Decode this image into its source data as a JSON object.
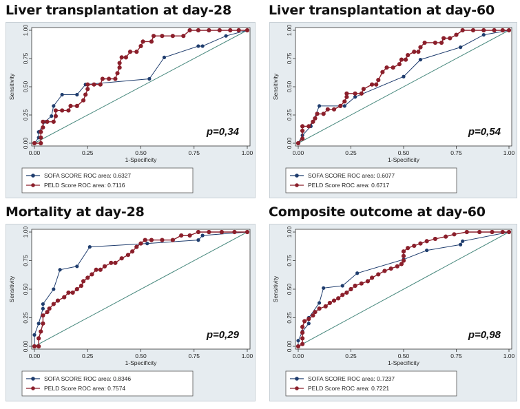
{
  "colors": {
    "sofa": "#1f3d6e",
    "peld": "#8b1f2b",
    "reference": "#4a8a7f",
    "panel_bg": "#e6ecf0",
    "plot_bg": "#ffffff"
  },
  "chart_data": [
    {
      "type": "line",
      "title": "Liver transplantation at day-28",
      "xlabel": "1-Specificity",
      "ylabel": "Sensitivity",
      "xlim": [
        0,
        1
      ],
      "ylim": [
        0,
        1
      ],
      "ticks": [
        "0.00",
        "0.25",
        "0.50",
        "0.75",
        "1.00"
      ],
      "p_value": "p=0,34",
      "legend": [
        "SOFA SCORE ROC area: 0.6327",
        "PELD Score ROC area: 0.7116"
      ],
      "series": [
        {
          "name": "SOFA SCORE",
          "points": [
            [
              0,
              0
            ],
            [
              0.02,
              0.05
            ],
            [
              0.02,
              0.1
            ],
            [
              0.05,
              0.19
            ],
            [
              0.08,
              0.24
            ],
            [
              0.09,
              0.33
            ],
            [
              0.13,
              0.43
            ],
            [
              0.2,
              0.43
            ],
            [
              0.24,
              0.52
            ],
            [
              0.54,
              0.57
            ],
            [
              0.61,
              0.76
            ],
            [
              0.77,
              0.86
            ],
            [
              0.79,
              0.86
            ],
            [
              0.9,
              0.95
            ],
            [
              1,
              1
            ]
          ]
        },
        {
          "name": "PELD Score",
          "points": [
            [
              0,
              0
            ],
            [
              0.03,
              0
            ],
            [
              0.03,
              0.05
            ],
            [
              0.03,
              0.1
            ],
            [
              0.04,
              0.14
            ],
            [
              0.04,
              0.19
            ],
            [
              0.06,
              0.19
            ],
            [
              0.09,
              0.19
            ],
            [
              0.1,
              0.24
            ],
            [
              0.1,
              0.29
            ],
            [
              0.13,
              0.29
            ],
            [
              0.16,
              0.29
            ],
            [
              0.17,
              0.33
            ],
            [
              0.2,
              0.33
            ],
            [
              0.23,
              0.38
            ],
            [
              0.24,
              0.43
            ],
            [
              0.25,
              0.48
            ],
            [
              0.25,
              0.52
            ],
            [
              0.28,
              0.52
            ],
            [
              0.31,
              0.52
            ],
            [
              0.32,
              0.57
            ],
            [
              0.35,
              0.57
            ],
            [
              0.38,
              0.57
            ],
            [
              0.39,
              0.62
            ],
            [
              0.4,
              0.67
            ],
            [
              0.4,
              0.71
            ],
            [
              0.41,
              0.76
            ],
            [
              0.43,
              0.76
            ],
            [
              0.45,
              0.81
            ],
            [
              0.48,
              0.81
            ],
            [
              0.5,
              0.86
            ],
            [
              0.51,
              0.9
            ],
            [
              0.55,
              0.9
            ],
            [
              0.56,
              0.95
            ],
            [
              0.6,
              0.95
            ],
            [
              0.65,
              0.95
            ],
            [
              0.7,
              0.95
            ],
            [
              0.73,
              1
            ],
            [
              0.77,
              1
            ],
            [
              0.82,
              1
            ],
            [
              0.87,
              1
            ],
            [
              0.92,
              1
            ],
            [
              0.96,
              1
            ],
            [
              1,
              1
            ]
          ]
        }
      ]
    },
    {
      "type": "line",
      "title": "Liver transplantation at day-60",
      "xlabel": "1-Specificity",
      "ylabel": "Sensitivity",
      "xlim": [
        0,
        1
      ],
      "ylim": [
        0,
        1
      ],
      "ticks": [
        "0.00",
        "0.25",
        "0.50",
        "0.75",
        "1.00"
      ],
      "p_value": "p=0,54",
      "legend": [
        "SOFA SCORE ROC area: 0.6077",
        "PELD Score ROC area: 0.6717"
      ],
      "series": [
        {
          "name": "SOFA SCORE",
          "points": [
            [
              0,
              0
            ],
            [
              0.02,
              0.07
            ],
            [
              0.06,
              0.15
            ],
            [
              0.1,
              0.33
            ],
            [
              0.22,
              0.33
            ],
            [
              0.27,
              0.41
            ],
            [
              0.5,
              0.59
            ],
            [
              0.58,
              0.74
            ],
            [
              0.77,
              0.85
            ],
            [
              0.88,
              0.96
            ],
            [
              1,
              1
            ]
          ]
        },
        {
          "name": "PELD Score",
          "points": [
            [
              0,
              0
            ],
            [
              0.02,
              0.04
            ],
            [
              0.02,
              0.11
            ],
            [
              0.02,
              0.15
            ],
            [
              0.05,
              0.15
            ],
            [
              0.07,
              0.19
            ],
            [
              0.08,
              0.22
            ],
            [
              0.09,
              0.26
            ],
            [
              0.12,
              0.26
            ],
            [
              0.14,
              0.3
            ],
            [
              0.17,
              0.3
            ],
            [
              0.2,
              0.33
            ],
            [
              0.22,
              0.37
            ],
            [
              0.23,
              0.41
            ],
            [
              0.23,
              0.44
            ],
            [
              0.27,
              0.44
            ],
            [
              0.3,
              0.44
            ],
            [
              0.31,
              0.48
            ],
            [
              0.35,
              0.52
            ],
            [
              0.37,
              0.52
            ],
            [
              0.38,
              0.56
            ],
            [
              0.4,
              0.63
            ],
            [
              0.42,
              0.67
            ],
            [
              0.45,
              0.67
            ],
            [
              0.48,
              0.7
            ],
            [
              0.49,
              0.74
            ],
            [
              0.51,
              0.74
            ],
            [
              0.52,
              0.78
            ],
            [
              0.55,
              0.81
            ],
            [
              0.57,
              0.81
            ],
            [
              0.58,
              0.85
            ],
            [
              0.6,
              0.89
            ],
            [
              0.65,
              0.89
            ],
            [
              0.68,
              0.89
            ],
            [
              0.69,
              0.93
            ],
            [
              0.72,
              0.93
            ],
            [
              0.75,
              0.96
            ],
            [
              0.78,
              1
            ],
            [
              0.83,
              1
            ],
            [
              0.88,
              1
            ],
            [
              0.93,
              1
            ],
            [
              0.97,
              1
            ],
            [
              1,
              1
            ]
          ]
        }
      ]
    },
    {
      "type": "line",
      "title": "Mortality at day-28",
      "xlabel": "1-Specificity",
      "ylabel": "Sensitivity",
      "xlim": [
        0,
        1
      ],
      "ylim": [
        0,
        1
      ],
      "ticks": [
        "0.00",
        "0.25",
        "0.50",
        "0.75",
        "1.00"
      ],
      "p_value": "p=0,29",
      "legend": [
        "SOFA SCORE ROC area: 0.8346",
        "PELD Score ROC area: 0.7574"
      ],
      "series": [
        {
          "name": "SOFA SCORE",
          "points": [
            [
              0,
              0
            ],
            [
              0,
              0.1
            ],
            [
              0.02,
              0.2
            ],
            [
              0.04,
              0.33
            ],
            [
              0.04,
              0.37
            ],
            [
              0.09,
              0.5
            ],
            [
              0.12,
              0.67
            ],
            [
              0.2,
              0.7
            ],
            [
              0.26,
              0.87
            ],
            [
              0.53,
              0.9
            ],
            [
              0.77,
              0.93
            ],
            [
              0.79,
              0.97
            ],
            [
              1,
              1
            ]
          ]
        },
        {
          "name": "PELD Score",
          "points": [
            [
              0,
              0
            ],
            [
              0.02,
              0
            ],
            [
              0.02,
              0.07
            ],
            [
              0.03,
              0.13
            ],
            [
              0.04,
              0.2
            ],
            [
              0.04,
              0.27
            ],
            [
              0.06,
              0.3
            ],
            [
              0.07,
              0.33
            ],
            [
              0.09,
              0.37
            ],
            [
              0.11,
              0.4
            ],
            [
              0.14,
              0.43
            ],
            [
              0.16,
              0.47
            ],
            [
              0.18,
              0.47
            ],
            [
              0.2,
              0.5
            ],
            [
              0.22,
              0.53
            ],
            [
              0.23,
              0.57
            ],
            [
              0.25,
              0.6
            ],
            [
              0.27,
              0.63
            ],
            [
              0.29,
              0.67
            ],
            [
              0.31,
              0.67
            ],
            [
              0.33,
              0.7
            ],
            [
              0.36,
              0.73
            ],
            [
              0.38,
              0.73
            ],
            [
              0.41,
              0.77
            ],
            [
              0.44,
              0.8
            ],
            [
              0.46,
              0.83
            ],
            [
              0.48,
              0.87
            ],
            [
              0.5,
              0.9
            ],
            [
              0.52,
              0.93
            ],
            [
              0.55,
              0.93
            ],
            [
              0.6,
              0.93
            ],
            [
              0.65,
              0.93
            ],
            [
              0.69,
              0.97
            ],
            [
              0.73,
              0.97
            ],
            [
              0.77,
              1
            ],
            [
              0.82,
              1
            ],
            [
              0.88,
              1
            ],
            [
              0.94,
              1
            ],
            [
              1,
              1
            ]
          ]
        }
      ]
    },
    {
      "type": "line",
      "title": "Composite outcome at day-60",
      "xlabel": "1-Specificity",
      "ylabel": "Sensitivity",
      "xlim": [
        0,
        1
      ],
      "ylim": [
        0,
        1
      ],
      "ticks": [
        "0.00",
        "0.25",
        "0.50",
        "0.75",
        "1.00"
      ],
      "p_value": "p=0,98",
      "legend": [
        "SOFA SCORE ROC area: 0.7237",
        "PELD Score ROC area: 0.7221"
      ],
      "series": [
        {
          "name": "SOFA SCORE",
          "points": [
            [
              0,
              0
            ],
            [
              0,
              0.05
            ],
            [
              0.02,
              0.13
            ],
            [
              0.05,
              0.2
            ],
            [
              0.05,
              0.25
            ],
            [
              0.1,
              0.38
            ],
            [
              0.12,
              0.51
            ],
            [
              0.21,
              0.53
            ],
            [
              0.28,
              0.64
            ],
            [
              0.5,
              0.76
            ],
            [
              0.61,
              0.84
            ],
            [
              0.77,
              0.89
            ],
            [
              0.78,
              0.92
            ],
            [
              1,
              1
            ]
          ]
        },
        {
          "name": "PELD Score",
          "points": [
            [
              0,
              0
            ],
            [
              0.02,
              0.02
            ],
            [
              0.02,
              0.07
            ],
            [
              0.02,
              0.12
            ],
            [
              0.02,
              0.17
            ],
            [
              0.03,
              0.22
            ],
            [
              0.05,
              0.24
            ],
            [
              0.07,
              0.27
            ],
            [
              0.08,
              0.3
            ],
            [
              0.1,
              0.33
            ],
            [
              0.13,
              0.35
            ],
            [
              0.15,
              0.38
            ],
            [
              0.17,
              0.4
            ],
            [
              0.19,
              0.42
            ],
            [
              0.21,
              0.45
            ],
            [
              0.23,
              0.47
            ],
            [
              0.25,
              0.5
            ],
            [
              0.27,
              0.53
            ],
            [
              0.3,
              0.55
            ],
            [
              0.33,
              0.57
            ],
            [
              0.35,
              0.6
            ],
            [
              0.38,
              0.63
            ],
            [
              0.41,
              0.66
            ],
            [
              0.44,
              0.68
            ],
            [
              0.47,
              0.7
            ],
            [
              0.49,
              0.72
            ],
            [
              0.5,
              0.75
            ],
            [
              0.5,
              0.79
            ],
            [
              0.5,
              0.83
            ],
            [
              0.52,
              0.86
            ],
            [
              0.55,
              0.88
            ],
            [
              0.58,
              0.9
            ],
            [
              0.61,
              0.92
            ],
            [
              0.65,
              0.94
            ],
            [
              0.7,
              0.96
            ],
            [
              0.74,
              0.98
            ],
            [
              0.8,
              1
            ],
            [
              0.86,
              1
            ],
            [
              0.92,
              1
            ],
            [
              0.97,
              1
            ],
            [
              1,
              1
            ]
          ]
        }
      ]
    }
  ]
}
